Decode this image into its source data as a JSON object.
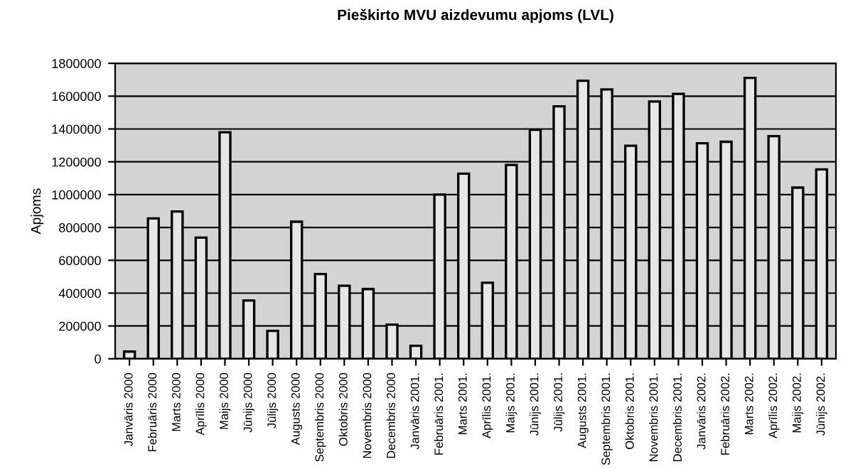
{
  "chart_data": {
    "type": "bar",
    "title": "Pieškirto MVU aizdevumu apjoms (LVL)",
    "ylabel": "Apjoms",
    "categories": [
      "Janvāris 2000",
      "Februāris 2000",
      "Marts 2000",
      "Aprīlis 2000",
      "Maijs 2000",
      "Jūnijs 2000",
      "Jūlijs 2000",
      "Augusts 2000",
      "Septembris 2000",
      "Oktobris 2000",
      "Novembris 2000",
      "Decembris 2000",
      "Janvāris 2001.",
      "Februāris 2001.",
      "Marts 2001.",
      "Aprīlis 2001.",
      "Maijs 2001.",
      "Jūnijs 2001.",
      "Jūlijs 2001.",
      "Augusts 2001.",
      "Septembris 2001.",
      "Oktobris 2001.",
      "Novembris 2001.",
      "Decembris 2001.",
      "Janvāris 2002.",
      "Februāris 2002.",
      "Marts 2002.",
      "Aprīlis 2002.",
      "Maijs 2002.",
      "Jūnijs 2002."
    ],
    "values": [
      44000,
      855000,
      897000,
      738000,
      1380000,
      355000,
      170000,
      835000,
      516000,
      445000,
      425000,
      208000,
      79000,
      1000000,
      1128000,
      463000,
      1181000,
      1395000,
      1538000,
      1694000,
      1641000,
      1298000,
      1567000,
      1614000,
      1313000,
      1322000,
      1711000,
      1356000,
      1043000,
      1154000
    ],
    "color": "#e6e6e6",
    "ylim": [
      0,
      1800000
    ],
    "yticks": [
      0,
      200000,
      400000,
      600000,
      800000,
      1000000,
      1200000,
      1400000,
      1600000,
      1800000
    ],
    "grid": "y"
  }
}
